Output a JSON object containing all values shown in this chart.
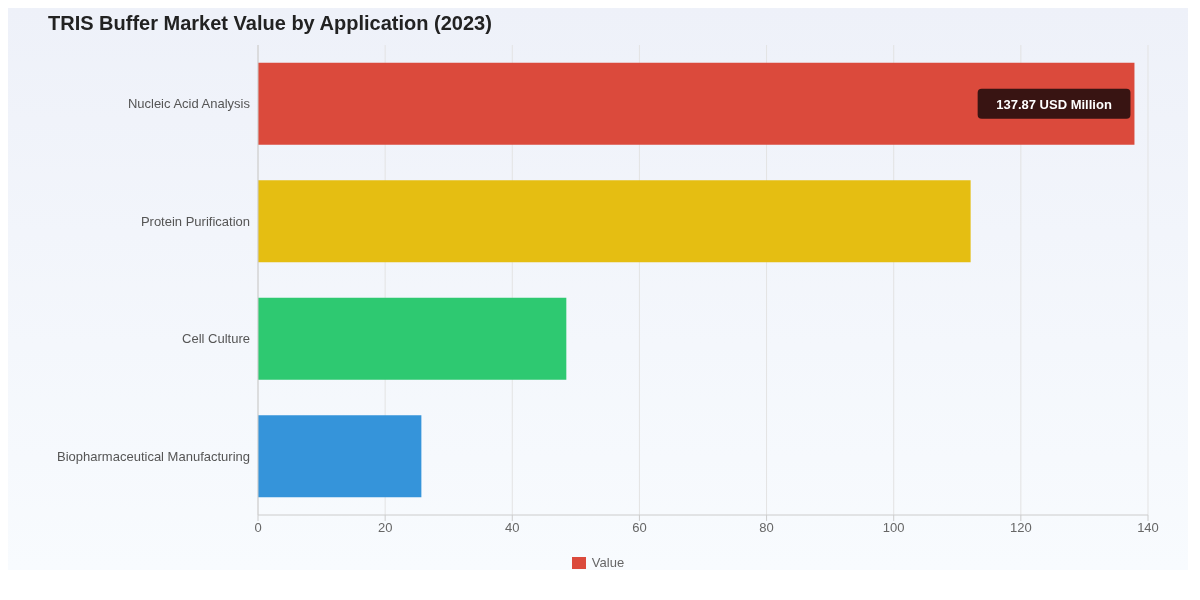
{
  "chart_data": {
    "type": "bar",
    "orientation": "horizontal",
    "title": "TRIS Buffer Market Value by Application (2023)",
    "categories": [
      "Nucleic Acid Analysis",
      "Protein Purification",
      "Cell Culture",
      "Biopharmaceutical Manufacturing"
    ],
    "series": [
      {
        "name": "Value",
        "color": "#db4a3c",
        "colors": [
          "#db4a3c",
          "#e5be12",
          "#2ec971",
          "#3594da"
        ],
        "values": [
          137.87,
          112.1,
          48.5,
          25.7
        ]
      }
    ],
    "xlim": [
      0,
      140
    ],
    "xticks": [
      0,
      20,
      40,
      60,
      80,
      100,
      120,
      140
    ],
    "grid": "x",
    "legend": "bottom",
    "annotations": [
      {
        "text": "137.87 USD Million",
        "x": 137.87,
        "y": "Nucleic Acid Analysis"
      }
    ]
  }
}
